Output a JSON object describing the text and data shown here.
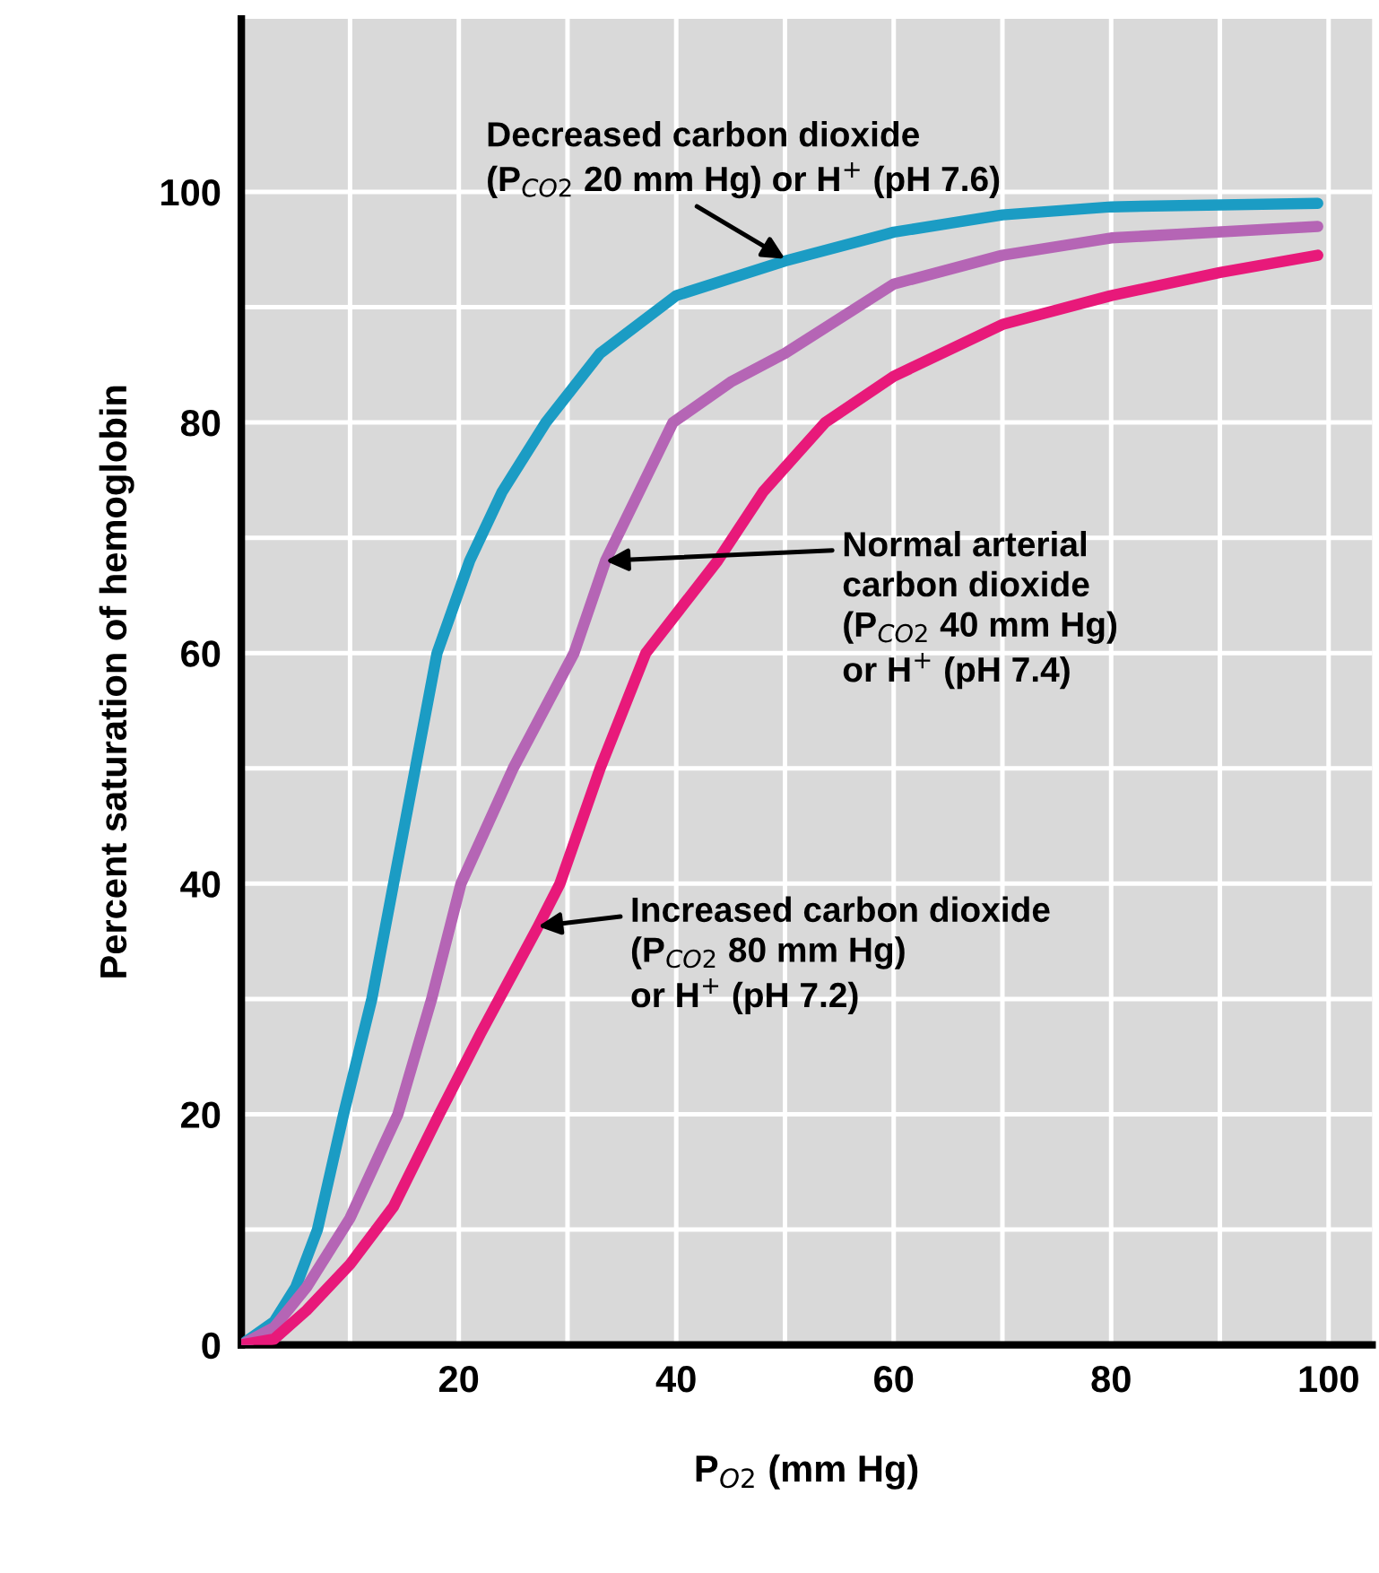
{
  "chart_data": {
    "type": "line",
    "xlabel": "P$_{O2}$ (mm Hg)",
    "ylabel": "Percent saturation of hemoglobin",
    "xlim": [
      0,
      104
    ],
    "ylim": [
      0,
      115
    ],
    "xticks": [
      {
        "value": 0,
        "label": null
      },
      {
        "value": 10,
        "label": null
      },
      20,
      {
        "value": 30,
        "label": null
      },
      40,
      {
        "value": 50,
        "label": null
      },
      60,
      {
        "value": 70,
        "label": null
      },
      80,
      {
        "value": 90,
        "label": null
      },
      100
    ],
    "yticks": [
      0,
      {
        "value": 10,
        "label": null
      },
      20,
      {
        "value": 30,
        "label": null
      },
      40,
      {
        "value": 50,
        "label": null
      },
      60,
      {
        "value": 70,
        "label": null
      },
      80,
      {
        "value": 90,
        "label": null
      },
      100
    ],
    "grid": true,
    "line_style": "solid",
    "marker": "none",
    "series": [
      {
        "color": "#1b9cc4",
        "x": [
          0,
          3,
          5,
          7,
          9.4,
          12,
          14,
          16,
          18,
          21,
          24,
          28,
          33,
          40,
          50,
          60,
          70,
          80,
          99
        ],
        "values": [
          0,
          2,
          5,
          10,
          20,
          30,
          40,
          50,
          60,
          68,
          74,
          80,
          86,
          91,
          94,
          96.5,
          98,
          98.7,
          99
        ]
      },
      {
        "color": "#b565b5",
        "x": [
          0,
          3,
          6,
          10,
          14.4,
          17.5,
          20.2,
          25,
          30.6,
          33.5,
          39.7,
          45,
          50,
          60,
          70,
          80,
          99
        ],
        "values": [
          0,
          1.5,
          5,
          11,
          20,
          30,
          40,
          50,
          60,
          68,
          80,
          83.5,
          86,
          92,
          94.5,
          96,
          97
        ]
      },
      {
        "color": "#e8197a",
        "x": [
          0,
          3,
          6,
          10,
          14,
          18.2,
          22,
          27.3,
          29.3,
          33,
          37.2,
          43.8,
          48,
          53.7,
          60,
          70,
          80,
          90,
          99
        ],
        "values": [
          0,
          0.5,
          3,
          7,
          12,
          20,
          27,
          36.3,
          40,
          50,
          60,
          68,
          74,
          80,
          84,
          88.5,
          91,
          93,
          94.5
        ]
      }
    ],
    "annotations": [
      {
        "text": "Decreased carbon dioxide\n(P$_{CO2}$ 20 mm Hg) or H$^{+}$ (pH 7.6)",
        "x": 50,
        "y": 94.2
      },
      {
        "text": "Normal arterial\ncarbon dioxide\n(P$_{CO2}$ 40 mm Hg)\nor H$^{+}$ (pH 7.4)",
        "x": 33.5,
        "y": 68
      },
      {
        "text": "Increased carbon dioxide\n(P$_{CO2}$ 80 mm Hg)\nor H$^{+}$ (pH 7.2)",
        "x": 27.3,
        "y": 36.3
      }
    ]
  }
}
